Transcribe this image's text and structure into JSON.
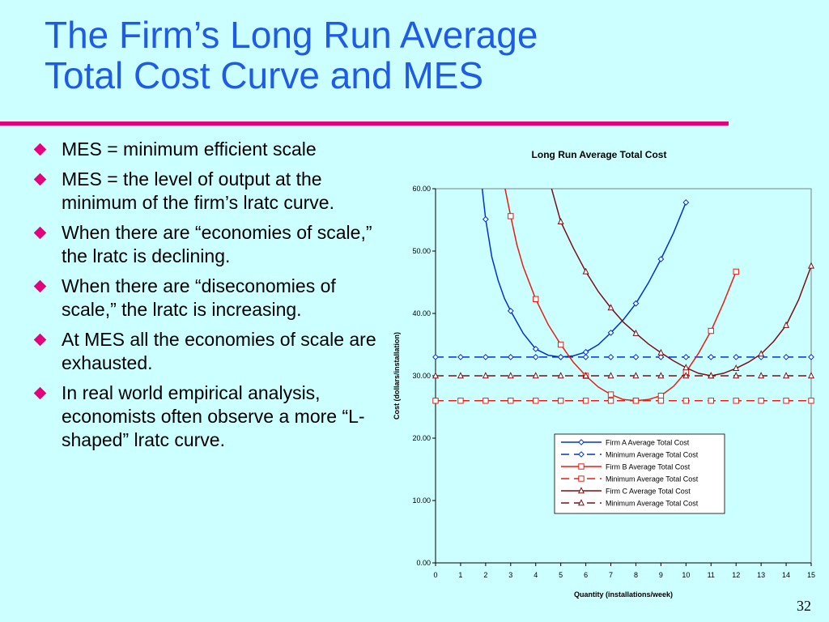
{
  "slide": {
    "title_line1": "The Firm’s Long Run Average",
    "title_line2": "Total Cost Curve and MES",
    "page_number": "32",
    "accent_color": "#e6007e",
    "title_color": "#1f5ce6",
    "background_color": "#ccffff"
  },
  "bullets": [
    "MES = minimum efficient scale",
    "MES = the level of output at the minimum of the firm’s lratc curve.",
    "When there are “economies of scale,” the lratc is declining.",
    "When there are “diseconomies of scale,” the lratc is increasing.",
    "At MES all the economies of scale are exhausted.",
    "In real world empirical analysis, economists often observe a more “L-shaped” lratc curve."
  ],
  "chart_data": {
    "type": "line",
    "title": "Long Run Average Total Cost",
    "xlabel": "Quantity (installations/week)",
    "ylabel": "Cost (dollars/installation)",
    "xlim": [
      0,
      15
    ],
    "ylim": [
      0,
      60
    ],
    "x_ticks": [
      "0",
      "1",
      "2",
      "3",
      "4",
      "5",
      "6",
      "7",
      "8",
      "9",
      "10",
      "11",
      "12",
      "13",
      "14",
      "15"
    ],
    "y_ticks": [
      "0.00",
      "10.00",
      "20.00",
      "30.00",
      "40.00",
      "50.00",
      "60.00"
    ],
    "grid": false,
    "legend_position": "bottom-right",
    "series": [
      {
        "name": "Firm A Average Total Cost",
        "color": "#0033cc",
        "marker": "diamond",
        "style": "solid",
        "x": [
          2,
          3,
          4,
          5,
          6,
          7,
          8,
          9,
          10
        ],
        "y": [
          55.1,
          40.4,
          34.3,
          33.0,
          33.8,
          36.9,
          41.6,
          48.7,
          57.8
        ],
        "curve_x": [
          1.85,
          2,
          2.25,
          2.5,
          2.75,
          3,
          3.5,
          4,
          4.5,
          5,
          5.5,
          6,
          6.5,
          7,
          7.5,
          8,
          8.5,
          9,
          9.5,
          10
        ],
        "curve_y": [
          60.5,
          55.1,
          49.0,
          45.3,
          42.4,
          40.4,
          36.8,
          34.3,
          33.3,
          33.0,
          33.2,
          33.8,
          35.0,
          36.9,
          39.0,
          41.6,
          44.9,
          48.7,
          52.9,
          57.8
        ]
      },
      {
        "name": "Minimum Average Total Cost",
        "color": "#0033cc",
        "marker": "diamond",
        "style": "dashed",
        "x": [
          0,
          1,
          2,
          3,
          4,
          5,
          6,
          7,
          8,
          9,
          10,
          11,
          12,
          13,
          14,
          15
        ],
        "y": [
          33,
          33,
          33,
          33,
          33,
          33,
          33,
          33,
          33,
          33,
          33,
          33,
          33,
          33,
          33,
          33
        ]
      },
      {
        "name": "Firm B Average Total Cost",
        "color": "#e61e14",
        "marker": "square",
        "style": "solid",
        "x": [
          3,
          4,
          5,
          6,
          7,
          8,
          9,
          10,
          11,
          12
        ],
        "y": [
          55.6,
          42.3,
          35.0,
          30.0,
          27.0,
          26.0,
          26.8,
          30.6,
          37.2,
          46.7
        ],
        "curve_x": [
          2.75,
          3,
          3.25,
          3.5,
          4,
          4.5,
          5,
          5.5,
          6,
          6.5,
          7,
          7.5,
          8,
          8.5,
          9,
          9.5,
          10,
          10.5,
          11,
          11.5,
          12
        ],
        "curve_y": [
          60.5,
          55.6,
          51.0,
          47.5,
          42.3,
          38.2,
          35.0,
          32.2,
          30.0,
          28.2,
          27.0,
          26.2,
          26.0,
          26.2,
          26.8,
          28.3,
          30.6,
          33.6,
          37.2,
          41.7,
          46.7
        ]
      },
      {
        "name": "Minimum Average Total Cost",
        "color": "#e61e14",
        "marker": "square",
        "style": "dashed",
        "x": [
          0,
          1,
          2,
          3,
          4,
          5,
          6,
          7,
          8,
          9,
          10,
          11,
          12,
          13,
          14,
          15
        ],
        "y": [
          26,
          26,
          26,
          26,
          26,
          26,
          26,
          26,
          26,
          26,
          26,
          26,
          26,
          26,
          26,
          26
        ]
      },
      {
        "name": "Firm C Average Total Cost",
        "color": "#7a0f14",
        "marker": "triangle",
        "style": "solid",
        "x": [
          5,
          6,
          7,
          8,
          9,
          10,
          11,
          12,
          13,
          14,
          15
        ],
        "y": [
          54.7,
          46.7,
          40.9,
          36.8,
          33.7,
          31.3,
          30.0,
          31.2,
          33.5,
          38.1,
          47.6
        ],
        "curve_x": [
          4.6,
          5,
          5.5,
          6,
          6.5,
          7,
          7.5,
          8,
          8.5,
          9,
          9.5,
          10,
          10.5,
          11,
          11.5,
          12,
          12.5,
          13,
          13.5,
          14,
          14.5,
          15
        ],
        "curve_y": [
          60.5,
          54.7,
          50.5,
          46.7,
          43.5,
          40.9,
          38.6,
          36.8,
          35.1,
          33.7,
          32.4,
          31.3,
          30.4,
          30.0,
          30.4,
          31.2,
          32.2,
          33.5,
          35.5,
          38.1,
          42.2,
          47.6
        ]
      },
      {
        "name": "Minimum Average Total Cost",
        "color": "#7a0f14",
        "marker": "triangle",
        "style": "dashed",
        "x": [
          0,
          1,
          2,
          3,
          4,
          5,
          6,
          7,
          8,
          9,
          10,
          11,
          12,
          13,
          14,
          15
        ],
        "y": [
          30,
          30,
          30,
          30,
          30,
          30,
          30,
          30,
          30,
          30,
          30,
          30,
          30,
          30,
          30,
          30
        ]
      }
    ]
  }
}
